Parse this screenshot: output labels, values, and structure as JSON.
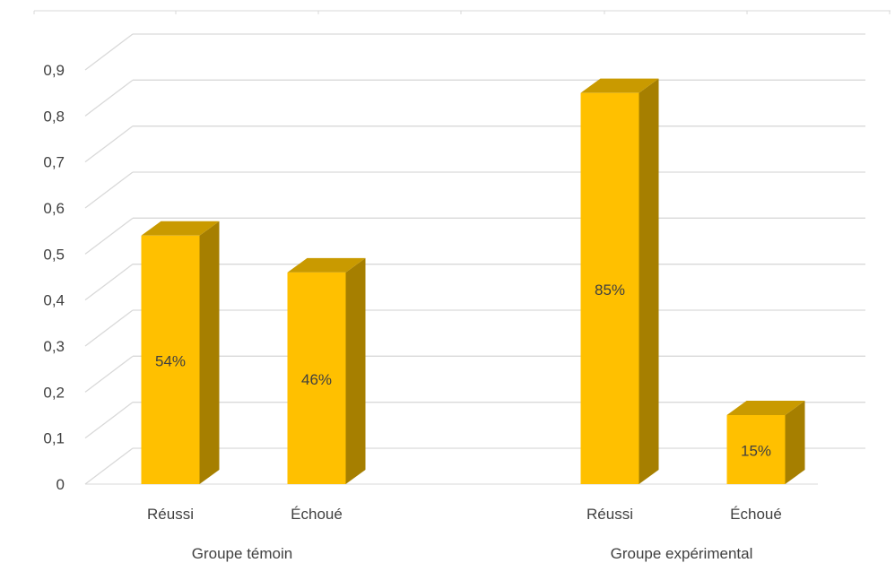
{
  "chart_data": {
    "type": "bar",
    "title": "",
    "xlabel": "",
    "ylabel": "",
    "ylim": [
      0,
      0.9
    ],
    "y_ticks": [
      "0",
      "0,1",
      "0,2",
      "0,3",
      "0,4",
      "0,5",
      "0,6",
      "0,7",
      "0,8",
      "0,9"
    ],
    "grid": true,
    "legend": "none",
    "groups": [
      {
        "label": "Groupe témoin",
        "bars": [
          {
            "category": "Réussi",
            "value": 0.54,
            "label": "54%"
          },
          {
            "category": "Échoué",
            "value": 0.46,
            "label": "46%"
          }
        ]
      },
      {
        "label": "Groupe expérimental",
        "bars": [
          {
            "category": "Réussi",
            "value": 0.85,
            "label": "85%"
          },
          {
            "category": "Échoué",
            "value": 0.15,
            "label": "15%"
          }
        ]
      }
    ],
    "colors": {
      "bar_front": "#FFC000",
      "bar_top": "#C99A00",
      "bar_side": "#A67F00",
      "grid": "#D9D9D9",
      "text": "#404040"
    }
  }
}
